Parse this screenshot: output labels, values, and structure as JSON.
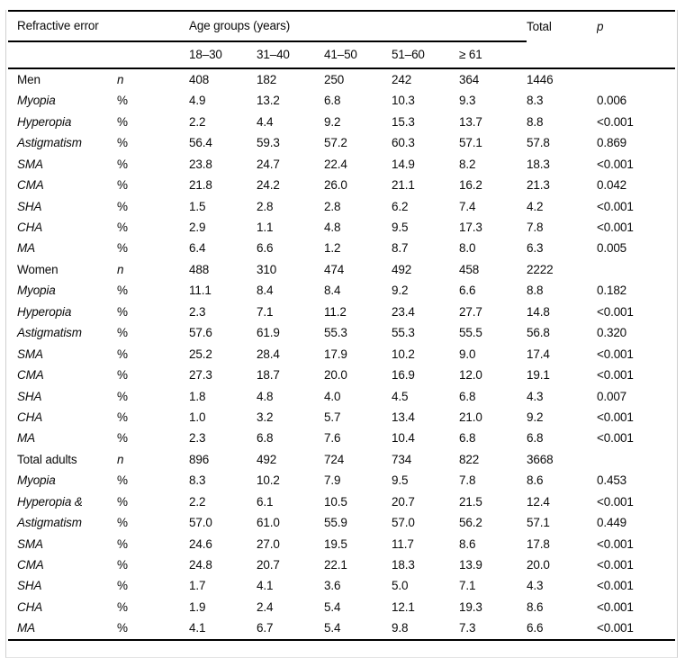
{
  "header": {
    "refractive_error": "Refractive error",
    "age_groups": "Age groups (years)",
    "age_cols": [
      "18–30",
      "31–40",
      "41–50",
      "51–60",
      "≥ 61"
    ],
    "total": "Total",
    "p": "p"
  },
  "sections": [
    {
      "name": "Men",
      "rows": [
        {
          "label": "Men",
          "italic": false,
          "measure": "n",
          "values": [
            "408",
            "182",
            "250",
            "242",
            "364"
          ],
          "total": "1446",
          "p": ""
        },
        {
          "label": "Myopia",
          "italic": true,
          "measure": "%",
          "values": [
            "4.9",
            "13.2",
            "6.8",
            "10.3",
            "9.3"
          ],
          "total": "8.3",
          "p": "0.006"
        },
        {
          "label": "Hyperopia",
          "italic": true,
          "measure": "%",
          "values": [
            "2.2",
            "4.4",
            "9.2",
            "15.3",
            "13.7"
          ],
          "total": "8.8",
          "p": "<0.001"
        },
        {
          "label": "Astigmatism",
          "italic": true,
          "measure": "%",
          "values": [
            "56.4",
            "59.3",
            "57.2",
            "60.3",
            "57.1"
          ],
          "total": "57.8",
          "p": "0.869"
        },
        {
          "label": "SMA",
          "italic": true,
          "measure": "%",
          "values": [
            "23.8",
            "24.7",
            "22.4",
            "14.9",
            "8.2"
          ],
          "total": "18.3",
          "p": "<0.001"
        },
        {
          "label": "CMA",
          "italic": true,
          "measure": "%",
          "values": [
            "21.8",
            "24.2",
            "26.0",
            "21.1",
            "16.2"
          ],
          "total": "21.3",
          "p": "0.042"
        },
        {
          "label": "SHA",
          "italic": true,
          "measure": "%",
          "values": [
            "1.5",
            "2.8",
            "2.8",
            "6.2",
            "7.4"
          ],
          "total": "4.2",
          "p": "<0.001"
        },
        {
          "label": "CHA",
          "italic": true,
          "measure": "%",
          "values": [
            "2.9",
            "1.1",
            "4.8",
            "9.5",
            "17.3"
          ],
          "total": "7.8",
          "p": "<0.001"
        },
        {
          "label": "MA",
          "italic": true,
          "measure": "%",
          "values": [
            "6.4",
            "6.6",
            "1.2",
            "8.7",
            "8.0"
          ],
          "total": "6.3",
          "p": "0.005"
        }
      ]
    },
    {
      "name": "Women",
      "rows": [
        {
          "label": "Women",
          "italic": false,
          "measure": "n",
          "values": [
            "488",
            "310",
            "474",
            "492",
            "458"
          ],
          "total": "2222",
          "p": ""
        },
        {
          "label": "Myopia",
          "italic": true,
          "measure": "%",
          "values": [
            "11.1",
            "8.4",
            "8.4",
            "9.2",
            "6.6"
          ],
          "total": "8.8",
          "p": "0.182"
        },
        {
          "label": "Hyperopia",
          "italic": true,
          "measure": "%",
          "values": [
            "2.3",
            "7.1",
            "11.2",
            "23.4",
            "27.7"
          ],
          "total": "14.8",
          "p": "<0.001"
        },
        {
          "label": "Astigmatism",
          "italic": true,
          "measure": "%",
          "values": [
            "57.6",
            "61.9",
            "55.3",
            "55.3",
            "55.5"
          ],
          "total": "56.8",
          "p": "0.320"
        },
        {
          "label": "SMA",
          "italic": true,
          "measure": "%",
          "values": [
            "25.2",
            "28.4",
            "17.9",
            "10.2",
            "9.0"
          ],
          "total": "17.4",
          "p": "<0.001"
        },
        {
          "label": "CMA",
          "italic": true,
          "measure": "%",
          "values": [
            "27.3",
            "18.7",
            "20.0",
            "16.9",
            "12.0"
          ],
          "total": "19.1",
          "p": "<0.001"
        },
        {
          "label": "SHA",
          "italic": true,
          "measure": "%",
          "values": [
            "1.8",
            "4.8",
            "4.0",
            "4.5",
            "6.8"
          ],
          "total": "4.3",
          "p": "0.007"
        },
        {
          "label": "CHA",
          "italic": true,
          "measure": "%",
          "values": [
            "1.0",
            "3.2",
            "5.7",
            "13.4",
            "21.0"
          ],
          "total": "9.2",
          "p": "<0.001"
        },
        {
          "label": "MA",
          "italic": true,
          "measure": "%",
          "values": [
            "2.3",
            "6.8",
            "7.6",
            "10.4",
            "6.8"
          ],
          "total": "6.8",
          "p": "<0.001"
        }
      ]
    },
    {
      "name": "Total adults",
      "rows": [
        {
          "label": "Total adults",
          "italic": false,
          "measure": "n",
          "values": [
            "896",
            "492",
            "724",
            "734",
            "822"
          ],
          "total": "3668",
          "p": ""
        },
        {
          "label": "Myopia",
          "italic": true,
          "measure": "%",
          "values": [
            "8.3",
            "10.2",
            "7.9",
            "9.5",
            "7.8"
          ],
          "total": "8.6",
          "p": "0.453"
        },
        {
          "label": "Hyperopia &",
          "italic": true,
          "measure": "%",
          "values": [
            "2.2",
            "6.1",
            "10.5",
            "20.7",
            "21.5"
          ],
          "total": "12.4",
          "p": "<0.001"
        },
        {
          "label": "Astigmatism",
          "italic": true,
          "measure": "%",
          "values": [
            "57.0",
            "61.0",
            "55.9",
            "57.0",
            "56.2"
          ],
          "total": "57.1",
          "p": "0.449"
        },
        {
          "label": "SMA",
          "italic": true,
          "measure": "%",
          "values": [
            "24.6",
            "27.0",
            "19.5",
            "11.7",
            "8.6"
          ],
          "total": "17.8",
          "p": "<0.001"
        },
        {
          "label": "CMA",
          "italic": true,
          "measure": "%",
          "values": [
            "24.8",
            "20.7",
            "22.1",
            "18.3",
            "13.9"
          ],
          "total": "20.0",
          "p": "<0.001"
        },
        {
          "label": "SHA",
          "italic": true,
          "measure": "%",
          "values": [
            "1.7",
            "4.1",
            "3.6",
            "5.0",
            "7.1"
          ],
          "total": "4.3",
          "p": "<0.001"
        },
        {
          "label": "CHA",
          "italic": true,
          "measure": "%",
          "values": [
            "1.9",
            "2.4",
            "5.4",
            "12.1",
            "19.3"
          ],
          "total": "8.6",
          "p": "<0.001"
        },
        {
          "label": "MA",
          "italic": true,
          "measure": "%",
          "values": [
            "4.1",
            "6.7",
            "5.4",
            "9.8",
            "7.3"
          ],
          "total": "6.6",
          "p": "<0.001"
        }
      ]
    }
  ]
}
